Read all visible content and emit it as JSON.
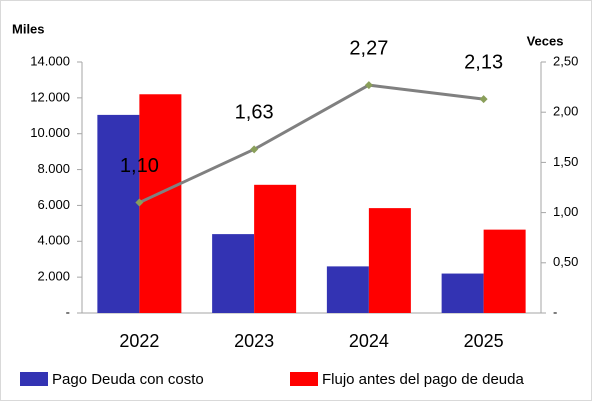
{
  "chart_data": {
    "type": "bar",
    "y_label": "Miles",
    "y2_label": "Veces",
    "categories": [
      "2022",
      "2023",
      "2024",
      "2025"
    ],
    "series": [
      {
        "name": "Pago Deuda con costo",
        "color": "#3333b3",
        "values": [
          11050,
          4400,
          2600,
          2200
        ]
      },
      {
        "name": "Flujo antes del pago de deuda",
        "color": "#ff0000",
        "values": [
          12200,
          7150,
          5850,
          4650
        ]
      },
      {
        "type": "line",
        "axis": "y2",
        "color": "#808080",
        "marker_color": "#8a9f5a",
        "values": [
          1.1,
          1.63,
          2.27,
          2.13
        ],
        "value_labels": [
          "1,10",
          "1,63",
          "2,27",
          "2,13"
        ]
      }
    ],
    "ylim": [
      0,
      14000
    ],
    "yticks": [
      {
        "value": 0,
        "label": "-"
      },
      {
        "value": 2000,
        "label": "2.000"
      },
      {
        "value": 4000,
        "label": "4.000"
      },
      {
        "value": 6000,
        "label": "6.000"
      },
      {
        "value": 8000,
        "label": "8.000"
      },
      {
        "value": 10000,
        "label": "10.000"
      },
      {
        "value": 12000,
        "label": "12.000"
      },
      {
        "value": 14000,
        "label": "14.000"
      }
    ],
    "y2lim": [
      0,
      2.5
    ],
    "y2ticks": [
      {
        "value": 0,
        "label": "-"
      },
      {
        "value": 0.5,
        "label": "0,50"
      },
      {
        "value": 1,
        "label": "1,00"
      },
      {
        "value": 1.5,
        "label": "1,50"
      },
      {
        "value": 2,
        "label": "2,00"
      },
      {
        "value": 2.5,
        "label": "2,50"
      }
    ],
    "legend": "bottom"
  }
}
